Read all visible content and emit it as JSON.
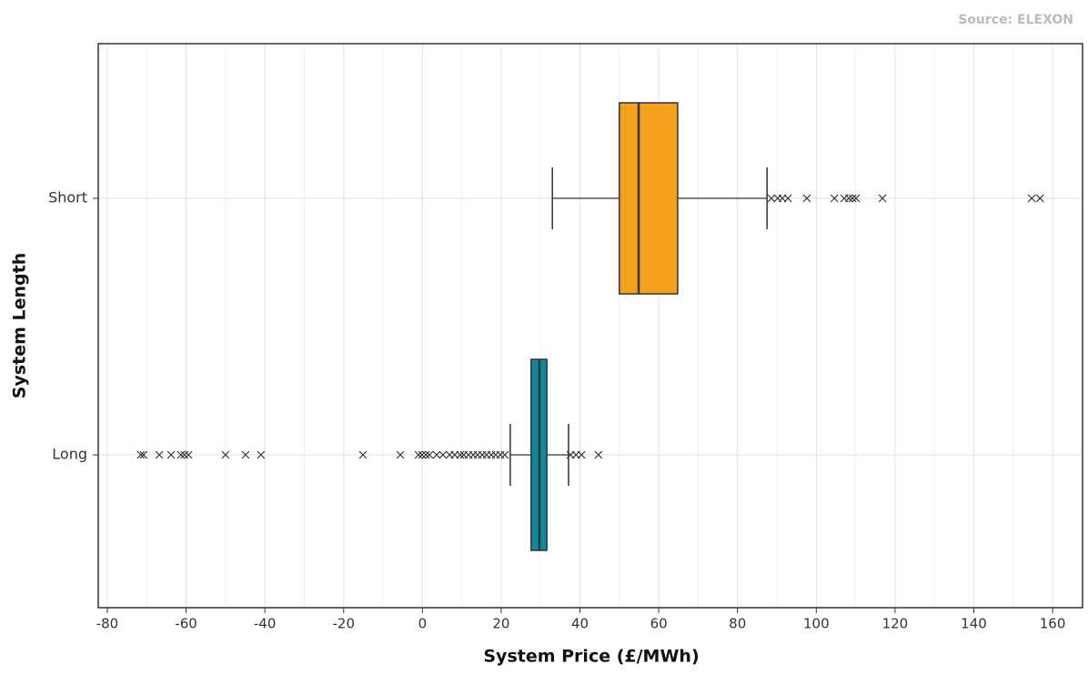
{
  "chart_data": {
    "type": "boxplot",
    "source": "Source: ELEXON",
    "x_label": "System Price (£/MWh)",
    "y_label": "System Length",
    "categories": [
      "Short",
      "Long"
    ],
    "colors": [
      "#f4a11e",
      "#0e8a9e"
    ],
    "min": [
      33,
      22.3
    ],
    "q1": [
      50,
      27.6
    ],
    "median": [
      54.9,
      29.7
    ],
    "q3": [
      64.8,
      31.6
    ],
    "max": [
      87.5,
      37.1
    ],
    "outliers": [
      [
        88.6,
        90.2,
        91.4,
        92.8,
        97.6,
        104.6,
        107.1,
        108.3,
        109.2,
        110.1,
        116.8,
        154.7,
        156.8
      ],
      [
        -71.5,
        -70.8,
        -66.8,
        -63.8,
        -61.3,
        -60.4,
        -59.4,
        -50,
        -44.9,
        -41,
        -15.1,
        -5.6,
        -1,
        -0.1,
        0.9,
        1.8,
        3.6,
        5.2,
        6.9,
        8.2,
        9.6,
        10.5,
        11.7,
        12.9,
        14,
        15.2,
        16.3,
        17.5,
        18.6,
        19.8,
        20.9,
        37.6,
        39,
        40.4,
        44.7
      ]
    ],
    "xlim": [
      -82.3,
      167.6
    ],
    "xticks": [
      -80,
      -60,
      -40,
      -20,
      0,
      20,
      40,
      60,
      80,
      100,
      120,
      140,
      160
    ],
    "grid": true
  }
}
